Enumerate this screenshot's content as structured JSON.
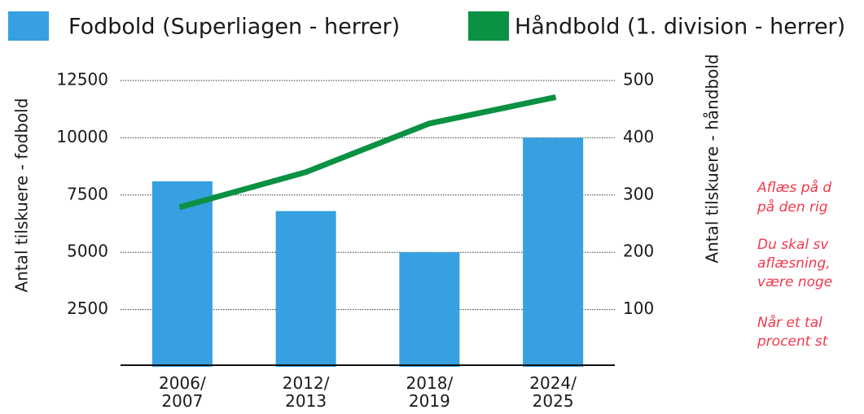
{
  "chart_data": {
    "type": "bar_line",
    "categories": [
      "2006/2007",
      "2012/2013",
      "2018/2019",
      "2024/2025"
    ],
    "series": [
      {
        "name": "Fodbold (Superliagen - herrer)",
        "color": "#36a0e0",
        "type": "bar",
        "values": [
          8100,
          6800,
          5000,
          10000
        ]
      },
      {
        "name": "Håndbold (1. division - herrer)",
        "color": "#0a9142",
        "type": "line",
        "axis": "y2",
        "values": [
          280,
          340,
          425,
          470
        ]
      }
    ],
    "ylabel": "Antal tilskuere - fodbold",
    "y2label": "Antal tilskuere - håndbold",
    "ylim": [
      0,
      12500
    ],
    "yticks": [
      2500,
      5000,
      7500,
      10000,
      12500
    ],
    "y2lim": [
      0,
      500
    ],
    "y2ticks": [
      100,
      200,
      300,
      400,
      500
    ],
    "grid": true,
    "legend": "top",
    "annotations": [
      [
        "Aflæs på d",
        "på den rig"
      ],
      [
        "Du skal sv",
        "aflæsning,",
        "være noge"
      ],
      [
        "Når et tal",
        "procent st"
      ]
    ]
  }
}
